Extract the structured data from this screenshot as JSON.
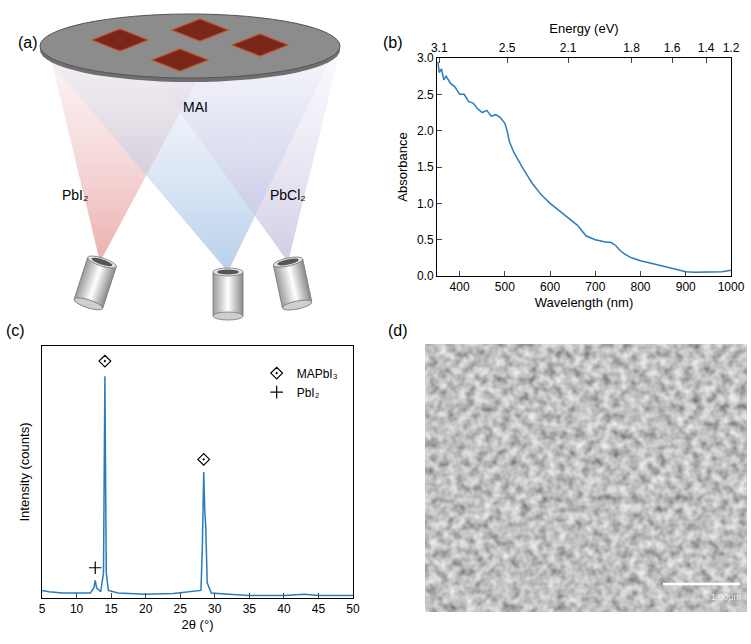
{
  "diagram": {
    "panel": "(a)",
    "sources": [
      "PbI₂",
      "MAI",
      "PbCl₂"
    ]
  },
  "chart_data": [
    {
      "panel": "(b)",
      "type": "line",
      "color": "#2b7bba",
      "xlabel": "Wavelength (nm)",
      "ylabel": "Absorbance",
      "x2label": "Energy (eV)",
      "x": [
        352,
        355,
        360,
        365,
        370,
        380,
        390,
        400,
        410,
        420,
        430,
        440,
        450,
        460,
        470,
        480,
        490,
        500,
        505,
        510,
        520,
        530,
        540,
        550,
        560,
        570,
        580,
        600,
        620,
        640,
        660,
        680,
        700,
        720,
        735,
        745,
        755,
        765,
        780,
        800,
        830,
        860,
        880,
        900,
        920,
        940,
        960,
        980,
        1000
      ],
      "values": [
        2.95,
        2.8,
        2.85,
        2.7,
        2.75,
        2.65,
        2.6,
        2.5,
        2.5,
        2.4,
        2.38,
        2.3,
        2.25,
        2.28,
        2.2,
        2.22,
        2.18,
        2.1,
        2.0,
        1.85,
        1.7,
        1.58,
        1.48,
        1.38,
        1.28,
        1.2,
        1.12,
        1.0,
        0.9,
        0.8,
        0.7,
        0.55,
        0.5,
        0.47,
        0.46,
        0.42,
        0.35,
        0.3,
        0.25,
        0.21,
        0.16,
        0.12,
        0.09,
        0.06,
        0.05,
        0.05,
        0.05,
        0.06,
        0.08
      ],
      "xlim": [
        350,
        1000
      ],
      "xticks": [
        400,
        500,
        600,
        700,
        800,
        900,
        1000
      ],
      "x2ticks": [
        {
          "value": 355,
          "label": "3.1"
        },
        {
          "value": 505,
          "label": "2.5"
        },
        {
          "value": 640,
          "label": "2.1"
        },
        {
          "value": 780,
          "label": "1.8"
        },
        {
          "value": 870,
          "label": "1.6"
        },
        {
          "value": 945,
          "label": "1.4"
        },
        {
          "value": 1000,
          "label": "1.2"
        }
      ],
      "ylim": [
        0,
        3
      ],
      "yticks": [
        {
          "value": 0,
          "label": "0.0"
        },
        0.5,
        {
          "value": 1,
          "label": "1.0"
        },
        1.5,
        {
          "value": 2,
          "label": "2.0"
        },
        2.5,
        {
          "value": 3,
          "label": "3.0"
        }
      ]
    },
    {
      "panel": "(c)",
      "type": "line",
      "xlabel": "2θ (°)",
      "ylabel": "Intensity (counts)",
      "xlim": [
        5,
        50
      ],
      "xticks": [
        5,
        10,
        15,
        20,
        25,
        30,
        35,
        40,
        45,
        50
      ],
      "ylim": [
        0,
        100
      ],
      "tick_labels": "x",
      "legend": "upper right",
      "series": [
        {
          "type": "line",
          "color": "#2b7bba",
          "x": [
            5,
            6,
            8,
            10,
            12,
            12.5,
            12.7,
            12.9,
            13.5,
            13.9,
            14.1,
            14.3,
            14.6,
            16,
            20,
            24,
            28,
            28.2,
            28.4,
            28.55,
            28.7,
            28.9,
            29.5,
            32,
            35,
            40,
            43,
            45,
            50
          ],
          "values": [
            3,
            2.5,
            2,
            2,
            2,
            4,
            7,
            4,
            2.5,
            10,
            88,
            10,
            3,
            2,
            1.5,
            1.8,
            3,
            20,
            50,
            35,
            28,
            6,
            2,
            1.5,
            1,
            1,
            1.5,
            1,
            1
          ]
        },
        {
          "name": "MAPbI₃",
          "type": "scatter",
          "marker": "diamond-open-dot",
          "color": "#000000",
          "x": [
            14.1,
            28.4
          ],
          "values": [
            94,
            55
          ]
        },
        {
          "name": "PbI₂",
          "type": "scatter",
          "marker": "cross-thin-open",
          "color": "#000000",
          "x": [
            12.7
          ],
          "values": [
            12
          ]
        }
      ]
    }
  ],
  "image": {
    "panel": "(d)",
    "scale_bar": "1.00μm"
  }
}
